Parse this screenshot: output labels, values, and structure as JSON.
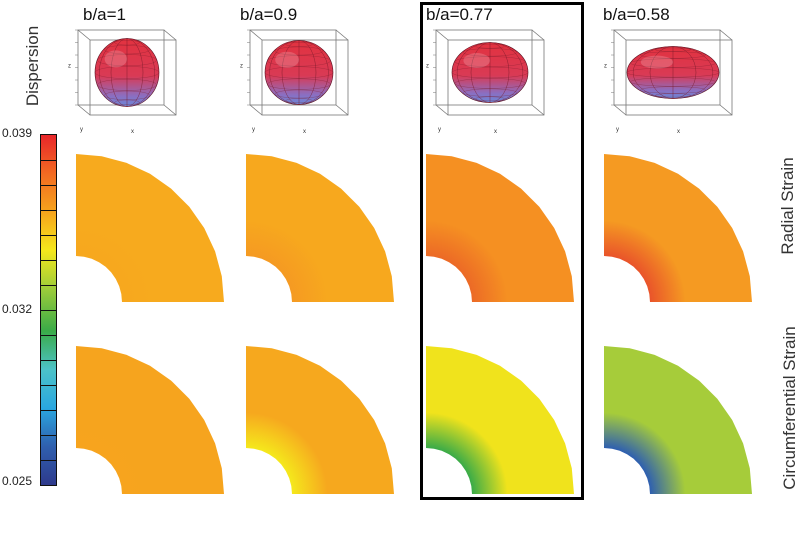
{
  "figure": {
    "columns": [
      {
        "label": "b/a=1",
        "ratio": 1.0
      },
      {
        "label": "b/a=0.9",
        "ratio": 0.9
      },
      {
        "label": "b/a=0.77",
        "ratio": 0.77
      },
      {
        "label": "b/a=0.58",
        "ratio": 0.58
      }
    ],
    "highlighted_column": "b/a=0.77",
    "row_labels": {
      "dispersion": "Dispersion",
      "radial": "Radial Strain",
      "circumferential": "Circumferential Strain"
    },
    "axis_letters": {
      "x": "x",
      "y": "y",
      "z": "z"
    }
  },
  "colorbar": {
    "max_label": "0.039",
    "mid_label": "0.032",
    "min_label": "0.025",
    "max": 0.039,
    "mid": 0.032,
    "min": 0.025,
    "stops": [
      "#e8262a",
      "#f26a22",
      "#f6a41c",
      "#f5e81c",
      "#9ccc3a",
      "#3aab48",
      "#4cc3c8",
      "#2aa7e0",
      "#2f5fae",
      "#2e3a8c"
    ]
  },
  "panels": {
    "radial": [
      {
        "inner": "#f7a81e",
        "outer": "#f7aa1e"
      },
      {
        "inner": "#f59a22",
        "outer": "#f7a81e"
      },
      {
        "inner": "#ec6a26",
        "outer": "#f59022"
      },
      {
        "inner": "#e9542a",
        "outer": "#f59a22"
      }
    ],
    "circumferential": [
      {
        "inner": "#f7a41e",
        "outer": "#f6a41e"
      },
      {
        "inner": "#f5e81c",
        "outer": "#f6a81e"
      },
      {
        "inner": "#3aab48",
        "outer": "#f0e31c"
      },
      {
        "inner": "#2e5fb0",
        "outer": "#a6cc3a"
      }
    ]
  }
}
